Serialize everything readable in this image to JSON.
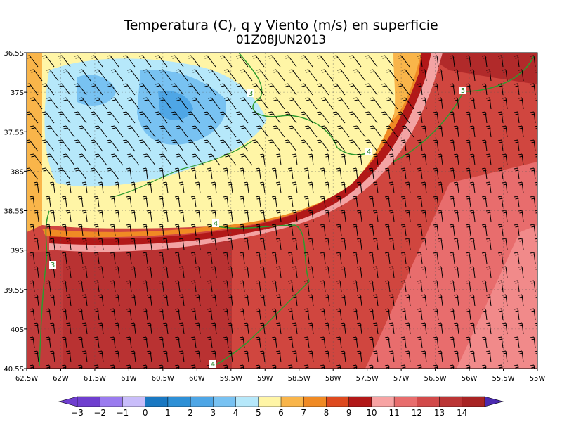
{
  "title": {
    "line1": "Temperatura (C), q y Viento (m/s) en superficie",
    "line2": "01Z08JUN2013"
  },
  "map": {
    "lon_labels": [
      "62.5W",
      "62W",
      "61.5W",
      "61W",
      "60.5W",
      "60W",
      "59.5W",
      "59W",
      "58.5W",
      "58W",
      "57.5W",
      "57W",
      "56.5W",
      "56W",
      "55.5W",
      "55W"
    ],
    "lat_labels": [
      "36.5S",
      "37S",
      "37.5S",
      "38S",
      "38.5S",
      "39S",
      "39.5S",
      "40S",
      "40.5S"
    ],
    "contour_labels": [
      "3",
      "4",
      "4",
      "5",
      "3",
      "4"
    ]
  },
  "colorbar": {
    "tick_labels": [
      "−3",
      "−2",
      "−1",
      "0",
      "1",
      "2",
      "3",
      "4",
      "5",
      "6",
      "7",
      "8",
      "9",
      "10",
      "11",
      "12",
      "13",
      "14"
    ],
    "colors": [
      "#6f3fcf",
      "#9a7bef",
      "#c9bdfa",
      "#1a78c2",
      "#2e90d6",
      "#4ea6e6",
      "#78c2f2",
      "#b6e8fa",
      "#fff5a6",
      "#f9b54a",
      "#f08a24",
      "#de4a1f",
      "#b21818",
      "#f7a3a3",
      "#e86d6d",
      "#d24a4a",
      "#bb3535",
      "#a82424"
    ]
  }
}
